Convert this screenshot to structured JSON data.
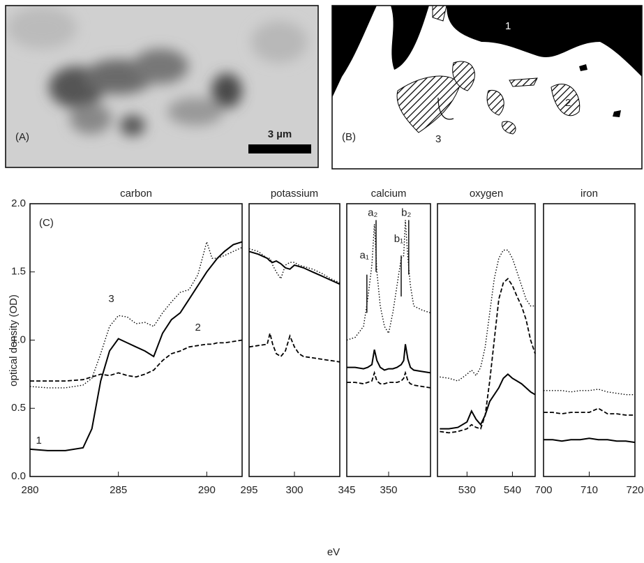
{
  "images": [
    {
      "label": "(A)",
      "scale_bar": "3 µm"
    },
    {
      "label": "(B)",
      "regions": [
        "1",
        "2",
        "3"
      ]
    }
  ],
  "figure": {
    "panel_label": "(C)",
    "ylabel": "optical density (OD)",
    "xlabel": "eV"
  },
  "chart_data": [
    {
      "type": "line",
      "title": "carbon",
      "xlim": [
        280,
        292
      ],
      "xticks": [
        280,
        285,
        290
      ],
      "ylim": [
        0,
        2
      ],
      "yticks": [
        {
          "value": 0,
          "label": "0.0"
        },
        0.5,
        {
          "value": 1,
          "label": "1.0"
        },
        1.5,
        {
          "value": 2,
          "label": "2.0"
        }
      ],
      "x": [
        280,
        281,
        282,
        283,
        283.5,
        284,
        284.5,
        285,
        285.5,
        286,
        286.5,
        287,
        287.5,
        288,
        288.5,
        289,
        289.5,
        290,
        290.3,
        290.6,
        291,
        291.5,
        292
      ],
      "series": [
        {
          "color": "#000000",
          "dash": "solid",
          "values": [
            0.2,
            0.19,
            0.19,
            0.21,
            0.35,
            0.7,
            0.92,
            1.01,
            0.98,
            0.95,
            0.92,
            0.88,
            1.05,
            1.15,
            1.2,
            1.3,
            1.4,
            1.5,
            1.55,
            1.6,
            1.65,
            1.7,
            1.72
          ]
        },
        {
          "color": "#000000",
          "dash": "dashed",
          "values": [
            0.7,
            0.7,
            0.7,
            0.71,
            0.73,
            0.75,
            0.74,
            0.76,
            0.74,
            0.73,
            0.75,
            0.78,
            0.85,
            0.9,
            0.92,
            0.95,
            0.96,
            0.97,
            0.97,
            0.98,
            0.98,
            0.99,
            1.0
          ]
        },
        {
          "color": "#000000",
          "dash": "dotted",
          "values": [
            0.66,
            0.65,
            0.65,
            0.67,
            0.72,
            0.9,
            1.1,
            1.18,
            1.17,
            1.12,
            1.13,
            1.1,
            1.2,
            1.28,
            1.35,
            1.37,
            1.48,
            1.72,
            1.6,
            1.6,
            1.62,
            1.65,
            1.68
          ]
        }
      ],
      "annotations": [
        "1",
        "2",
        "3"
      ]
    },
    {
      "type": "line",
      "title": "potassium",
      "xlim": [
        295,
        305
      ],
      "xticks": [
        295,
        300
      ],
      "ylim": [
        0,
        2
      ],
      "x": [
        295,
        296,
        297,
        297.3,
        297.6,
        298,
        298.5,
        299,
        299.5,
        300,
        300.5,
        301,
        302,
        303,
        304,
        305
      ],
      "series": [
        {
          "color": "#000000",
          "dash": "solid",
          "values": [
            1.65,
            1.63,
            1.6,
            1.58,
            1.57,
            1.58,
            1.56,
            1.53,
            1.52,
            1.55,
            1.54,
            1.53,
            1.5,
            1.47,
            1.44,
            1.41
          ]
        },
        {
          "color": "#000000",
          "dash": "dashed",
          "values": [
            0.95,
            0.96,
            0.97,
            1.05,
            0.97,
            0.9,
            0.88,
            0.92,
            1.03,
            0.95,
            0.9,
            0.88,
            0.87,
            0.86,
            0.85,
            0.84
          ]
        },
        {
          "color": "#000000",
          "dash": "dotted",
          "values": [
            1.67,
            1.65,
            1.6,
            1.6,
            1.55,
            1.5,
            1.45,
            1.55,
            1.57,
            1.57,
            1.55,
            1.54,
            1.52,
            1.49,
            1.45,
            1.42
          ]
        }
      ]
    },
    {
      "type": "line",
      "title": "calcium",
      "xlim": [
        345,
        355
      ],
      "xticks": [
        345,
        350
      ],
      "ylim": [
        0,
        2
      ],
      "x": [
        345,
        346,
        347,
        347.5,
        348,
        348.3,
        348.6,
        349,
        349.5,
        350,
        350.5,
        351,
        351.5,
        351.8,
        352,
        352.3,
        352.6,
        353,
        354,
        355
      ],
      "series": [
        {
          "color": "#000000",
          "dash": "solid",
          "values": [
            0.8,
            0.8,
            0.79,
            0.8,
            0.82,
            0.93,
            0.85,
            0.8,
            0.78,
            0.79,
            0.79,
            0.8,
            0.82,
            0.85,
            0.97,
            0.86,
            0.8,
            0.78,
            0.77,
            0.76
          ]
        },
        {
          "color": "#000000",
          "dash": "dashed",
          "values": [
            0.69,
            0.69,
            0.68,
            0.69,
            0.7,
            0.76,
            0.7,
            0.68,
            0.68,
            0.69,
            0.69,
            0.69,
            0.7,
            0.72,
            0.76,
            0.7,
            0.68,
            0.67,
            0.66,
            0.65
          ]
        },
        {
          "color": "#000000",
          "dash": "dotted",
          "values": [
            1.0,
            1.02,
            1.1,
            1.3,
            1.55,
            1.85,
            1.5,
            1.25,
            1.1,
            1.05,
            1.2,
            1.4,
            1.6,
            1.62,
            1.88,
            1.6,
            1.4,
            1.25,
            1.22,
            1.2
          ]
        }
      ],
      "annotations": [
        "a₁",
        "a₂",
        "b₁",
        "b₂"
      ]
    },
    {
      "type": "line",
      "title": "oxygen",
      "xlim": [
        523.5,
        545
      ],
      "xticks": [
        530,
        540
      ],
      "ylim": [
        0,
        2
      ],
      "x": [
        524,
        526,
        528,
        530,
        531,
        532,
        533,
        534,
        535,
        536,
        537,
        538,
        539,
        540,
        541,
        542,
        543,
        544,
        545
      ],
      "series": [
        {
          "color": "#000000",
          "dash": "solid",
          "values": [
            0.35,
            0.35,
            0.36,
            0.4,
            0.48,
            0.42,
            0.38,
            0.45,
            0.55,
            0.6,
            0.65,
            0.72,
            0.75,
            0.72,
            0.7,
            0.68,
            0.65,
            0.62,
            0.6
          ]
        },
        {
          "color": "#000000",
          "dash": "dashed",
          "values": [
            0.33,
            0.32,
            0.33,
            0.35,
            0.38,
            0.36,
            0.35,
            0.45,
            0.7,
            1.0,
            1.3,
            1.42,
            1.45,
            1.4,
            1.32,
            1.25,
            1.15,
            1.0,
            0.9
          ]
        },
        {
          "color": "#000000",
          "dash": "dotted",
          "values": [
            0.73,
            0.72,
            0.7,
            0.75,
            0.78,
            0.74,
            0.8,
            0.95,
            1.2,
            1.45,
            1.6,
            1.66,
            1.66,
            1.6,
            1.5,
            1.4,
            1.3,
            1.25,
            1.25
          ]
        }
      ]
    },
    {
      "type": "line",
      "title": "iron",
      "xlim": [
        700,
        720
      ],
      "xticks": [
        700,
        710,
        720
      ],
      "ylim": [
        0,
        2
      ],
      "x": [
        700,
        702,
        704,
        706,
        708,
        710,
        712,
        714,
        716,
        718,
        720
      ],
      "series": [
        {
          "color": "#000000",
          "dash": "solid",
          "values": [
            0.27,
            0.27,
            0.26,
            0.27,
            0.27,
            0.28,
            0.27,
            0.27,
            0.26,
            0.26,
            0.25
          ]
        },
        {
          "color": "#000000",
          "dash": "dashed",
          "values": [
            0.47,
            0.47,
            0.46,
            0.47,
            0.47,
            0.47,
            0.5,
            0.46,
            0.46,
            0.45,
            0.45
          ]
        },
        {
          "color": "#000000",
          "dash": "dotted",
          "values": [
            0.63,
            0.63,
            0.63,
            0.62,
            0.63,
            0.63,
            0.64,
            0.62,
            0.61,
            0.6,
            0.6
          ]
        }
      ]
    }
  ]
}
